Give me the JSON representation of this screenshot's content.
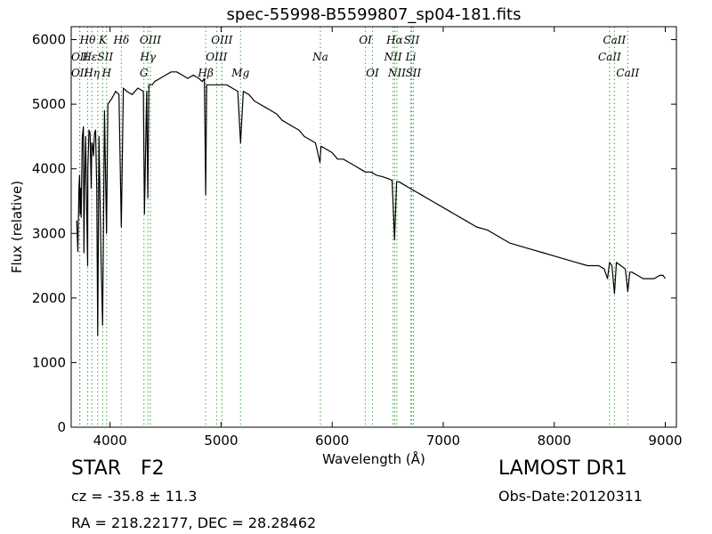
{
  "chart_data": {
    "type": "line",
    "title": "spec-55998-B5599807_sp04-181.fits",
    "xlabel": "Wavelength (Å)",
    "ylabel": "Flux (relative)",
    "xlim": [
      3650,
      9100
    ],
    "ylim": [
      0,
      6200
    ],
    "xticks": [
      4000,
      5000,
      6000,
      7000,
      8000,
      9000
    ],
    "yticks": [
      0,
      1000,
      2000,
      3000,
      4000,
      5000,
      6000
    ],
    "grid": false,
    "line_color": "#000000",
    "marker_color": "#33aa33",
    "series": [
      {
        "x": [
          3700,
          3710,
          3720,
          3725,
          3730,
          3735,
          3740,
          3750,
          3760,
          3765,
          3770,
          3780,
          3790,
          3798,
          3800,
          3810,
          3820,
          3830,
          3835,
          3840,
          3850,
          3860,
          3870,
          3880,
          3889,
          3900,
          3920,
          3933,
          3950,
          3968,
          3980,
          4000,
          4020,
          4050,
          4080,
          4101,
          4120,
          4150,
          4200,
          4250,
          4300,
          4310,
          4330,
          4340,
          4350,
          4380,
          4400,
          4450,
          4500,
          4550,
          4600,
          4650,
          4700,
          4750,
          4800,
          4830,
          4850,
          4861,
          4870,
          4900,
          4950,
          5000,
          5050,
          5100,
          5150,
          5175,
          5200,
          5250,
          5300,
          5350,
          5400,
          5450,
          5500,
          5550,
          5600,
          5650,
          5700,
          5750,
          5800,
          5850,
          5890,
          5900,
          5950,
          6000,
          6050,
          6100,
          6150,
          6200,
          6250,
          6300,
          6350,
          6400,
          6450,
          6500,
          6540,
          6562,
          6580,
          6600,
          6650,
          6700,
          6750,
          6800,
          6900,
          7000,
          7100,
          7200,
          7300,
          7400,
          7500,
          7600,
          7700,
          7800,
          7900,
          8000,
          8100,
          8200,
          8300,
          8400,
          8450,
          8480,
          8498,
          8520,
          8542,
          8560,
          8600,
          8640,
          8662,
          8680,
          8700,
          8750,
          8800,
          8850,
          8900,
          8950,
          8980,
          9000
        ],
        "values": [
          3200,
          2720,
          3700,
          3900,
          3300,
          3700,
          3250,
          4500,
          4650,
          2700,
          3700,
          4500,
          3300,
          2500,
          4000,
          4600,
          4550,
          3700,
          4400,
          4400,
          4200,
          4550,
          4600,
          3700,
          1420,
          4500,
          2500,
          1580,
          4900,
          3000,
          5000,
          5050,
          5100,
          5200,
          5150,
          3100,
          5250,
          5200,
          5150,
          5250,
          5200,
          3300,
          5200,
          3550,
          5300,
          5300,
          5350,
          5400,
          5450,
          5500,
          5500,
          5450,
          5400,
          5450,
          5400,
          5350,
          5400,
          3600,
          5300,
          5300,
          5300,
          5300,
          5300,
          5250,
          5200,
          4400,
          5200,
          5150,
          5050,
          5000,
          4950,
          4900,
          4850,
          4750,
          4700,
          4650,
          4600,
          4500,
          4450,
          4400,
          4100,
          4350,
          4300,
          4250,
          4150,
          4150,
          4100,
          4050,
          4000,
          3950,
          3950,
          3900,
          3880,
          3850,
          3820,
          2900,
          3800,
          3800,
          3750,
          3700,
          3650,
          3600,
          3500,
          3400,
          3300,
          3200,
          3100,
          3050,
          2950,
          2850,
          2800,
          2750,
          2700,
          2650,
          2600,
          2550,
          2500,
          2500,
          2450,
          2300,
          2550,
          2500,
          2070,
          2550,
          2500,
          2450,
          2100,
          2400,
          2400,
          2350,
          2300,
          2300,
          2300,
          2350,
          2350,
          2300
        ]
      }
    ],
    "lines": [
      {
        "label": "OII",
        "wave": 3727,
        "row": 2
      },
      {
        "label": "OII",
        "wave": 3727,
        "row": 3
      },
      {
        "label": "Hθ",
        "wave": 3798,
        "row": 1
      },
      {
        "label": "Hη",
        "wave": 3835,
        "row": 3
      },
      {
        "label": "HεSII",
        "wave": 3889,
        "row": 2
      },
      {
        "label": "K",
        "wave": 3934,
        "row": 1
      },
      {
        "label": "H",
        "wave": 3969,
        "row": 3
      },
      {
        "label": "Hδ",
        "wave": 4102,
        "row": 1
      },
      {
        "label": "G",
        "wave": 4305,
        "row": 3
      },
      {
        "label": "Hγ",
        "wave": 4341,
        "row": 2
      },
      {
        "label": "OIII",
        "wave": 4363,
        "row": 1
      },
      {
        "label": "Hβ",
        "wave": 4861,
        "row": 3
      },
      {
        "label": "OIII",
        "wave": 4959,
        "row": 2
      },
      {
        "label": "OIII",
        "wave": 5007,
        "row": 1
      },
      {
        "label": "Mg",
        "wave": 5175,
        "row": 3
      },
      {
        "label": "Na",
        "wave": 5894,
        "row": 2
      },
      {
        "label": "OI",
        "wave": 6300,
        "row": 1
      },
      {
        "label": "OI",
        "wave": 6363,
        "row": 3
      },
      {
        "label": "NII",
        "wave": 6548,
        "row": 2
      },
      {
        "label": "Hα",
        "wave": 6563,
        "row": 1
      },
      {
        "label": "NII",
        "wave": 6583,
        "row": 3
      },
      {
        "label": "SII",
        "wave": 6716,
        "row": 1
      },
      {
        "label": "Li",
        "wave": 6708,
        "row": 2
      },
      {
        "label": "SII",
        "wave": 6731,
        "row": 3
      },
      {
        "label": "CaII",
        "wave": 8498,
        "row": 2
      },
      {
        "label": "CaII",
        "wave": 8542,
        "row": 1
      },
      {
        "label": "CaII",
        "wave": 8662,
        "row": 3
      }
    ]
  },
  "info": {
    "class_label": "STAR",
    "subclass": "F2",
    "survey": "LAMOST DR1",
    "cz": "cz = -35.8 ± 11.3",
    "obs_date": "Obs-Date:20120311",
    "radec": "RA = 218.22177, DEC = 28.28462"
  }
}
